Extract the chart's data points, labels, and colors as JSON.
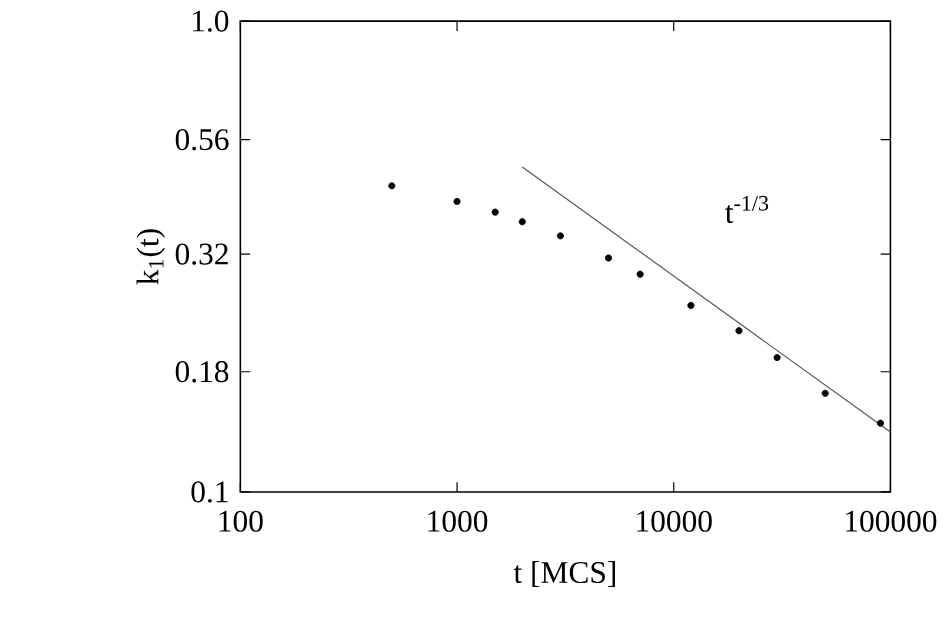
{
  "chart_data": {
    "type": "scatter",
    "xlabel": "t [MCS]",
    "ylabel": "k$_{1}$(t)",
    "log": "xy",
    "grid": false,
    "xlim": [
      100,
      100000
    ],
    "ylim": [
      0.1,
      1.0
    ],
    "xticks": [
      100,
      1000,
      10000,
      100000
    ],
    "yticks": [
      0.1,
      0.18,
      0.32,
      0.56,
      {
        "value": 1.0,
        "label": "1.0"
      }
    ],
    "series": [
      {
        "marker": "circle",
        "color": "#000000",
        "x": [
          500,
          1000,
          1500,
          2000,
          3000,
          5000,
          7000,
          12000,
          20000,
          30000,
          50000,
          90000
        ],
        "values": [
          0.447,
          0.414,
          0.393,
          0.375,
          0.35,
          0.314,
          0.29,
          0.249,
          0.22,
          0.193,
          0.162,
          0.14
        ]
      },
      {
        "type": "line",
        "marker": "none",
        "color": "#555555",
        "line_style": "solid",
        "x": [
          2000,
          100000
        ],
        "values": [
          0.49,
          0.134
        ]
      }
    ],
    "annotations": [
      "t$^{-1/3}$"
    ]
  }
}
